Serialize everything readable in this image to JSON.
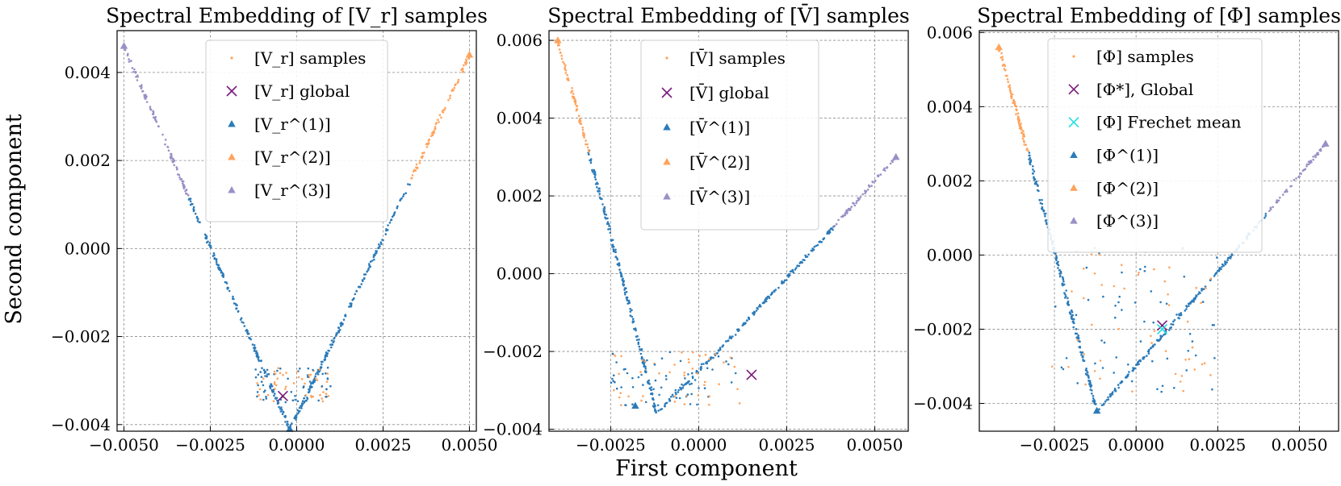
{
  "figure": {
    "xlabel": "First component",
    "ylabel": "Second component"
  },
  "colors": {
    "samples": "#ffa35c",
    "c1": "#2b7bba",
    "c2": "#ffa35c",
    "c3": "#9a90c6",
    "global": "#7b1a7b",
    "frechet": "#22e0e0"
  },
  "chart_data": [
    {
      "type": "scatter",
      "title": "Spectral Embedding of [V_r] samples",
      "xlim": [
        -0.0052,
        0.0052
      ],
      "ylim": [
        -0.00415,
        0.00495
      ],
      "xticks": [
        -0.005,
        -0.0025,
        0.0,
        0.0025,
        0.005
      ],
      "xtick_labels": [
        "−0.0050",
        "−0.0025",
        "0.0000",
        "0.0025",
        "0.0050"
      ],
      "yticks": [
        -0.004,
        -0.002,
        0.0,
        0.002,
        0.004
      ],
      "ytick_labels": [
        "−0.004",
        "−0.002",
        "0.000",
        "0.002",
        "0.004"
      ],
      "legend": [
        "[V_r] samples",
        "[V_r] global",
        "[V_r^(1)]",
        "[V_r^(2)]",
        "[V_r^(3)]"
      ],
      "global": [
        -0.0004,
        -0.00335
      ],
      "cluster_vertices": {
        "c1": [
          -0.0002,
          -0.0041
        ],
        "c2": [
          0.005,
          0.0044
        ],
        "c3": [
          -0.005,
          0.0046
        ]
      },
      "curve": {
        "left": [
          -0.005,
          0.0046
        ],
        "bottom": [
          -0.0002,
          -0.0041
        ],
        "right": [
          0.005,
          0.0044
        ],
        "bend": 0.0004
      },
      "spread_region": {
        "x_range": [
          -0.0012,
          0.001
        ],
        "y_range": [
          -0.0035,
          -0.0027
        ]
      }
    },
    {
      "type": "scatter",
      "title": "Spectral Embedding of [V̄] samples",
      "xlim": [
        -0.00425,
        0.00595
      ],
      "ylim": [
        -0.00405,
        0.00625
      ],
      "xticks": [
        -0.0025,
        0.0,
        0.0025,
        0.005
      ],
      "xtick_labels": [
        "−0.0025",
        "0.0000",
        "0.0025",
        "0.0050"
      ],
      "yticks": [
        -0.004,
        -0.002,
        0.0,
        0.002,
        0.004,
        0.006
      ],
      "ytick_labels": [
        "−0.004",
        "−0.002",
        "0.000",
        "0.002",
        "0.004",
        "0.006"
      ],
      "legend": [
        "[V̄] samples",
        "[V̄] global",
        "[V̄^(1)]",
        "[V̄^(2)]",
        "[V̄^(3)]"
      ],
      "global": [
        0.0015,
        -0.0026
      ],
      "cluster_vertices": {
        "c1": [
          -0.0018,
          -0.0034
        ],
        "c2": [
          -0.004,
          0.006
        ],
        "c3": [
          0.0056,
          0.003
        ]
      },
      "curve": {
        "left": [
          -0.004,
          0.006
        ],
        "bottom": [
          -0.0012,
          -0.0036
        ],
        "right": [
          0.0056,
          0.003
        ],
        "bend": 0.0002
      },
      "spread_region": {
        "x_range": [
          -0.0025,
          0.0012
        ],
        "y_range": [
          -0.0034,
          -0.002
        ]
      }
    },
    {
      "type": "scatter",
      "title": "Spectral Embedding of [Φ] samples",
      "xlim": [
        -0.0048,
        0.0062
      ],
      "ylim": [
        -0.00475,
        0.00605
      ],
      "xticks": [
        -0.0025,
        0.0,
        0.0025,
        0.005
      ],
      "xtick_labels": [
        "−0.0025",
        "0.0000",
        "0.0025",
        "0.0050"
      ],
      "yticks": [
        -0.004,
        -0.002,
        0.0,
        0.002,
        0.004,
        0.006
      ],
      "ytick_labels": [
        "−0.004",
        "−0.002",
        "0.000",
        "0.002",
        "0.004",
        "0.006"
      ],
      "legend": [
        "[Φ] samples",
        "[Φ*], Global",
        "[Φ] Frechet mean",
        "[Φ^(1)]",
        "[Φ^(2)]",
        "[Φ^(3)]"
      ],
      "global": [
        0.0008,
        -0.0019
      ],
      "frechet_mean": [
        0.0008,
        -0.002
      ],
      "cluster_vertices": {
        "c1": [
          -0.0012,
          -0.0042
        ],
        "c2": [
          -0.0042,
          0.0056
        ],
        "c3": [
          0.0058,
          0.003
        ]
      },
      "curve": {
        "left": [
          -0.0042,
          0.0056
        ],
        "bottom": [
          -0.0012,
          -0.0042
        ],
        "right": [
          0.0058,
          0.003
        ],
        "bend": 0.0001
      },
      "spread_region": {
        "x_range": [
          -0.0026,
          0.0025
        ],
        "y_range": [
          -0.0038,
          0.0002
        ]
      }
    }
  ]
}
